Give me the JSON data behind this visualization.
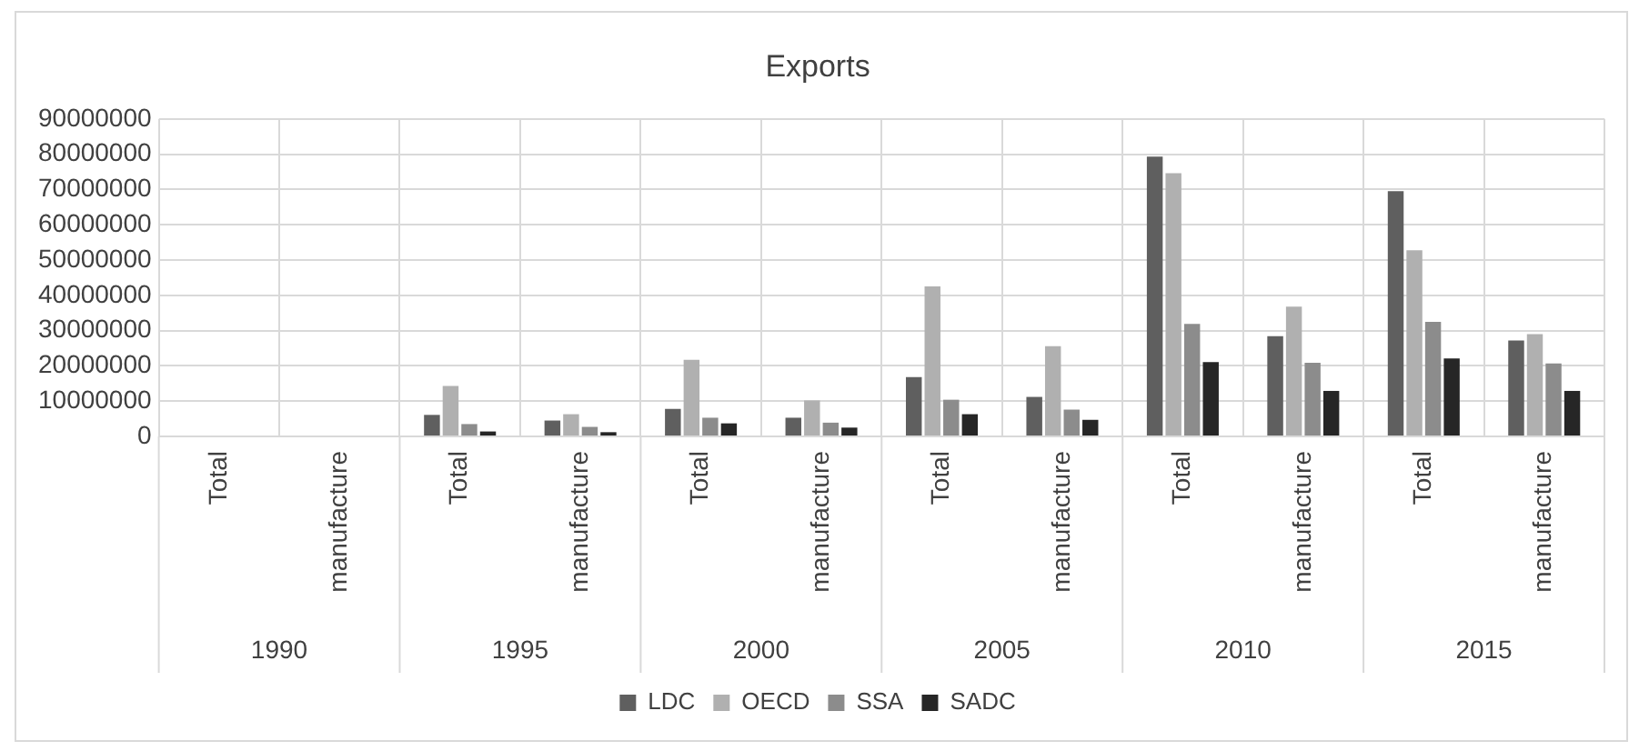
{
  "chart_data": {
    "type": "bar",
    "title": "Exports",
    "categories": [
      "Total",
      "manufacture",
      "Total",
      "manufacture",
      "Total",
      "manufacture",
      "Total",
      "manufacture",
      "Total",
      "manufacture",
      "Total",
      "manufacture"
    ],
    "annotations": [
      "1990",
      "1995",
      "2000",
      "2005",
      "2010",
      "2015"
    ],
    "series": [
      {
        "name": "LDC",
        "color": "#5f5f5f",
        "values": [
          0,
          0,
          6100000,
          4500000,
          7800000,
          5300000,
          16800000,
          11200000,
          79300000,
          28400000,
          69500000,
          27200000
        ]
      },
      {
        "name": "OECD",
        "color": "#b0b0b0",
        "values": [
          0,
          0,
          14300000,
          6300000,
          21700000,
          10200000,
          42500000,
          25600000,
          74600000,
          36800000,
          52800000,
          29000000
        ]
      },
      {
        "name": "SSA",
        "color": "#8c8c8c",
        "values": [
          0,
          0,
          3500000,
          2700000,
          5300000,
          3900000,
          10400000,
          7600000,
          31900000,
          20900000,
          32500000,
          20700000
        ]
      },
      {
        "name": "SADC",
        "color": "#262626",
        "values": [
          0,
          0,
          1400000,
          1200000,
          3700000,
          2500000,
          6300000,
          4700000,
          21100000,
          12900000,
          22100000,
          12900000
        ]
      }
    ],
    "ylim": [
      0,
      90000000
    ],
    "yticks": [
      0,
      10000000,
      20000000,
      30000000,
      40000000,
      50000000,
      60000000,
      70000000,
      80000000,
      90000000
    ],
    "grid": true,
    "legend": "bottom"
  }
}
